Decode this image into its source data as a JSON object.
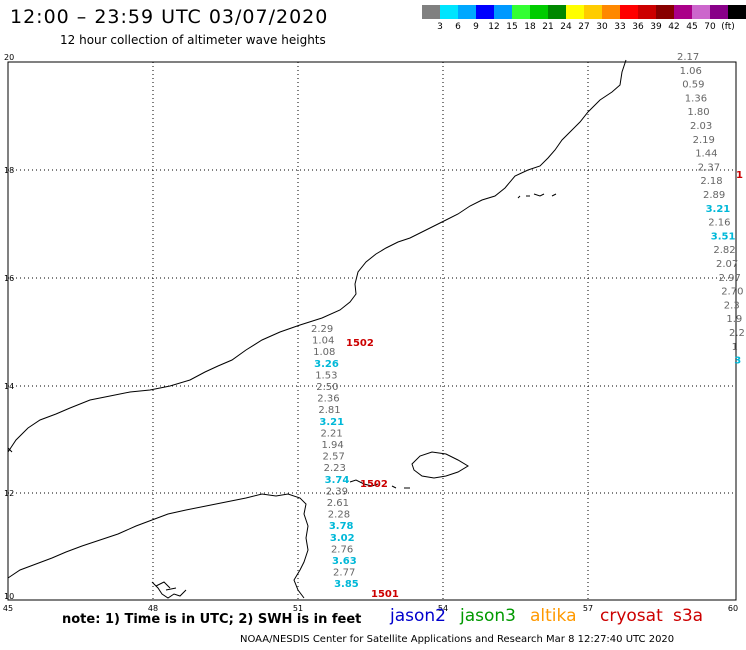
{
  "title": "12:00 – 23:59 UTC 03/07/2020",
  "subtitle": "12 hour collection of altimeter wave heights",
  "legend": {
    "colors": [
      "#808080",
      "#00e5ff",
      "#00a8ff",
      "#0000ff",
      "#0099ff",
      "#33ff33",
      "#00cc00",
      "#008800",
      "#ffff00",
      "#ffcc00",
      "#ff8800",
      "#ff0000",
      "#cc0000",
      "#880000",
      "#aa0088",
      "#cc66cc",
      "#880088",
      "#000000"
    ],
    "labels": [
      "3",
      "6",
      "9",
      "12",
      "15",
      "18",
      "21",
      "24",
      "27",
      "30",
      "33",
      "36",
      "39",
      "42",
      "45",
      "70",
      "(ft)"
    ]
  },
  "lat_ticks": [
    "20",
    "18",
    "16",
    "14",
    "12",
    "10"
  ],
  "lon_ticks": [
    "45",
    "48",
    "51",
    "54",
    "57",
    "60"
  ],
  "track_right": {
    "values": [
      "2.17",
      "1.06",
      "0.59",
      "1.36",
      "1.80",
      "2.03",
      "2.19",
      "1.44",
      "2.37",
      "2.18",
      "2.89",
      "3.21",
      "2.16",
      "3.51",
      "2.82",
      "2.07",
      "2.97",
      "2.70",
      "2.3",
      "1.9",
      "2.2",
      "1",
      "3"
    ],
    "colors": [
      "g",
      "g",
      "g",
      "g",
      "g",
      "g",
      "g",
      "g",
      "g",
      "g",
      "g",
      "c",
      "g",
      "c",
      "g",
      "g",
      "g",
      "g",
      "g",
      "g",
      "g",
      "g",
      "c"
    ],
    "extra_label": "1"
  },
  "track_center": {
    "values": [
      "2.29",
      "1.04",
      "1.08",
      "3.26",
      "1.53",
      "2.50",
      "2.36",
      "2.81",
      "3.21",
      "2.21",
      "1.94",
      "2.57",
      "2.23",
      "3.74",
      "2.39",
      "2.61",
      "2.28",
      "3.78",
      "3.02",
      "2.76",
      "3.63",
      "2.77",
      "3.85"
    ],
    "colors": [
      "g",
      "g",
      "g",
      "c",
      "g",
      "g",
      "g",
      "g",
      "c",
      "g",
      "g",
      "g",
      "g",
      "c",
      "g",
      "g",
      "g",
      "c",
      "c",
      "g",
      "c",
      "g",
      "c"
    ]
  },
  "pass_labels": [
    "1502",
    "1502",
    "1501"
  ],
  "note": "note: 1) Time is in UTC; 2) SWH is in feet",
  "satellites": [
    {
      "name": "jason2",
      "color": "#0000cc"
    },
    {
      "name": "jason3",
      "color": "#009900"
    },
    {
      "name": "altika",
      "color": "#ff9900"
    },
    {
      "name": "cryosat",
      "color": "#cc0000"
    },
    {
      "name": "s3a",
      "color": "#cc0000"
    }
  ],
  "credit": "NOAA/NESDIS Center for Satellite Applications and Research   Mar  8 12:27:40 UTC 2020"
}
